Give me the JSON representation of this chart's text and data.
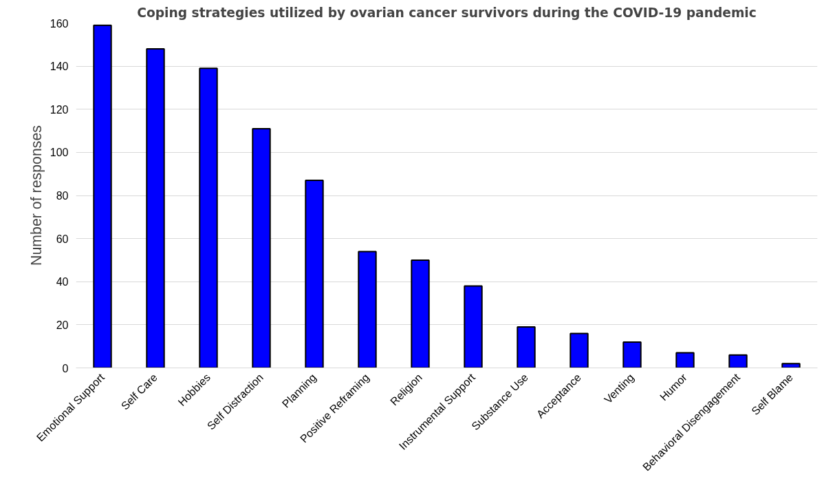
{
  "chart_data": {
    "type": "bar",
    "title": "Coping strategies utilized by ovarian cancer survivors during the COVID-19 pandemic",
    "ylabel": "Number of responses",
    "categories": [
      "Emotional Support",
      "Self Care",
      "Hobbies",
      "Self Distraction",
      "Planning",
      "Positive Reframing",
      "Religion",
      "Instrumental Support",
      "Substance Use",
      "Acceptance",
      "Venting",
      "Humor",
      "Behavioral Disengagement",
      "Self Blame"
    ],
    "values": [
      159,
      148,
      139,
      111,
      87,
      54,
      50,
      38,
      19,
      16,
      12,
      7,
      6,
      2
    ],
    "color": "#0000ff",
    "ylim": [
      0,
      160
    ],
    "yticks": [
      0,
      20,
      40,
      60,
      80,
      100,
      120,
      140,
      160
    ],
    "grid": "y"
  }
}
